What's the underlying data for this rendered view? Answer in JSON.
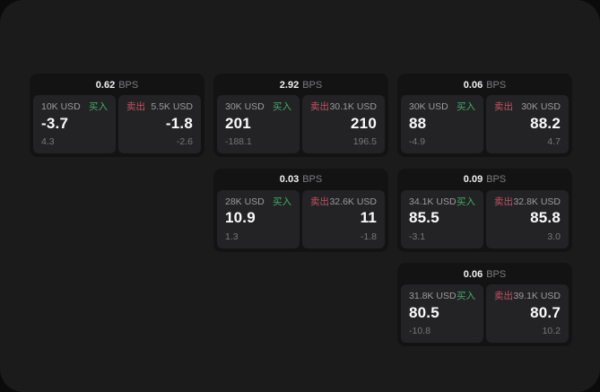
{
  "app": {
    "outer_background": "#0b0b0c",
    "surface_background": "#1b1b1c",
    "card_background": "#131314",
    "tile_background": "#232325"
  },
  "labels": {
    "buy": "买入",
    "sell": "卖出",
    "bps_unit": "BPS"
  },
  "colors": {
    "buy_green": "#3fae68",
    "sell_red": "#c85065"
  },
  "cards": [
    {
      "bps": "0.62",
      "buy": {
        "size": "10K USD",
        "price": "-3.7",
        "sub": "4.3"
      },
      "sell": {
        "size": "5.5K USD",
        "price": "-1.8",
        "sub": "-2.6"
      }
    },
    {
      "bps": "2.92",
      "buy": {
        "size": "30K USD",
        "price": "201",
        "sub": "-188.1"
      },
      "sell": {
        "size": "30.1K USD",
        "price": "210",
        "sub": "196.5"
      }
    },
    {
      "bps": "0.06",
      "buy": {
        "size": "30K USD",
        "price": "88",
        "sub": "-4.9"
      },
      "sell": {
        "size": "30K USD",
        "price": "88.2",
        "sub": "4.7"
      }
    },
    {
      "bps": "0.03",
      "buy": {
        "size": "28K USD",
        "price": "10.9",
        "sub": "1.3"
      },
      "sell": {
        "size": "32.6K USD",
        "price": "11",
        "sub": "-1.8"
      }
    },
    {
      "bps": "0.09",
      "buy": {
        "size": "34.1K USD",
        "price": "85.5",
        "sub": "-3.1"
      },
      "sell": {
        "size": "32.8K USD",
        "price": "85.8",
        "sub": "3.0"
      }
    },
    {
      "bps": "0.06",
      "buy": {
        "size": "31.8K USD",
        "price": "80.5",
        "sub": "-10.8"
      },
      "sell": {
        "size": "39.1K USD",
        "price": "80.7",
        "sub": "10.2"
      }
    }
  ]
}
